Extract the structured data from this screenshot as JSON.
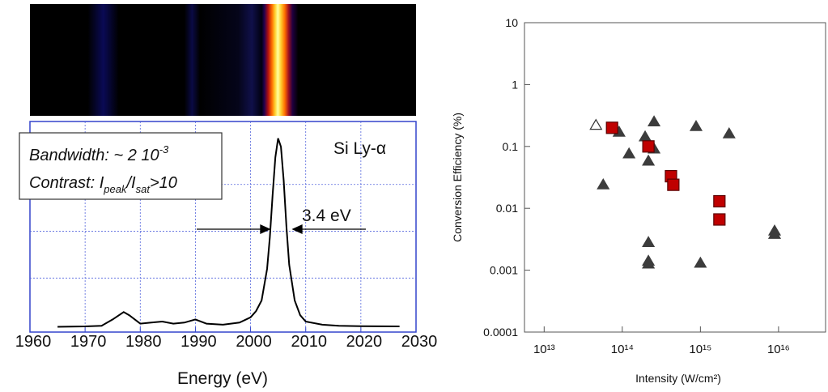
{
  "chart_data": [
    {
      "type": "line",
      "xlabel": "Energy (eV)",
      "x": [
        1965,
        1970,
        1973,
        1975,
        1977,
        1978,
        1980,
        1982,
        1984,
        1986,
        1988,
        1990,
        1992,
        1995,
        1998,
        2000,
        2001,
        2002,
        2003,
        2003.5,
        2004,
        2004.5,
        2005,
        2005.5,
        2006,
        2006.5,
        2007,
        2008,
        2009,
        2010,
        2013,
        2016,
        2020,
        2027
      ],
      "values": [
        0.025,
        0.027,
        0.03,
        0.06,
        0.095,
        0.08,
        0.04,
        0.045,
        0.05,
        0.04,
        0.045,
        0.06,
        0.04,
        0.035,
        0.045,
        0.07,
        0.1,
        0.15,
        0.3,
        0.45,
        0.65,
        0.83,
        0.92,
        0.88,
        0.72,
        0.5,
        0.32,
        0.15,
        0.08,
        0.05,
        0.035,
        0.03,
        0.028,
        0.027
      ],
      "color": "#000000",
      "xlim": [
        1960,
        2030
      ],
      "xticks": [
        1960,
        1970,
        1980,
        1990,
        2000,
        2010,
        2020,
        2030
      ],
      "ylim": [
        0,
        1
      ],
      "grid": true,
      "annotations": {
        "bandwidth": [
          "Bandwidth: ~ 2 10",
          "-3"
        ],
        "contrast": [
          "Contrast: I",
          "peak",
          "/I",
          "sat",
          ">10"
        ],
        "line": "Si Ly-α",
        "fwhm": "3.4 eV"
      }
    },
    {
      "type": "scatter",
      "xlabel": "Intensity (W/cm²)",
      "ylabel": "Conversion Efficiency (%)",
      "xscale": "log",
      "yscale": "log",
      "xlim": [
        5600000000000.0,
        4e+16
      ],
      "xticks": [
        {
          "value": 10000000000000.0,
          "label": "10¹³"
        },
        {
          "value": 100000000000000.0,
          "label": "10¹⁴"
        },
        {
          "value": 1000000000000000.0,
          "label": "10¹⁵"
        },
        {
          "value": 1e+16,
          "label": "10¹⁶"
        }
      ],
      "ylim": [
        0.0001,
        10
      ],
      "yticks": [
        10,
        1,
        0.1,
        0.01,
        0.001,
        0.0001
      ],
      "series": [
        {
          "marker": "triangle",
          "color": "#3c3c3c",
          "hollow": false,
          "x": [
            57000000000000.0,
            91000000000000.0,
            122000000000000.0,
            196000000000000.0,
            255000000000000.0,
            255000000000000.0,
            216000000000000.0,
            216000000000000.0,
            216000000000000.0,
            216000000000000.0,
            880000000000000.0,
            1000000000000000.0,
            2330000000000000.0,
            8900000000000000.0,
            8900000000000000.0
          ],
          "values": [
            0.024,
            0.17,
            0.076,
            0.143,
            0.25,
            0.091,
            0.058,
            0.0028,
            0.0014,
            0.00126,
            0.21,
            0.0013,
            0.16,
            0.0043,
            0.0038
          ]
        },
        {
          "marker": "triangle",
          "color": "#3c3c3c",
          "hollow": true,
          "x": [
            46000000000000.0
          ],
          "values": [
            0.22
          ]
        },
        {
          "marker": "square",
          "color": "#c00000",
          "hollow": false,
          "x": [
            74000000000000.0,
            216000000000000.0,
            420000000000000.0,
            450000000000000.0,
            1750000000000000.0,
            1750000000000000.0
          ],
          "values": [
            0.2,
            0.1,
            0.033,
            0.024,
            0.013,
            0.0066
          ]
        }
      ]
    }
  ]
}
